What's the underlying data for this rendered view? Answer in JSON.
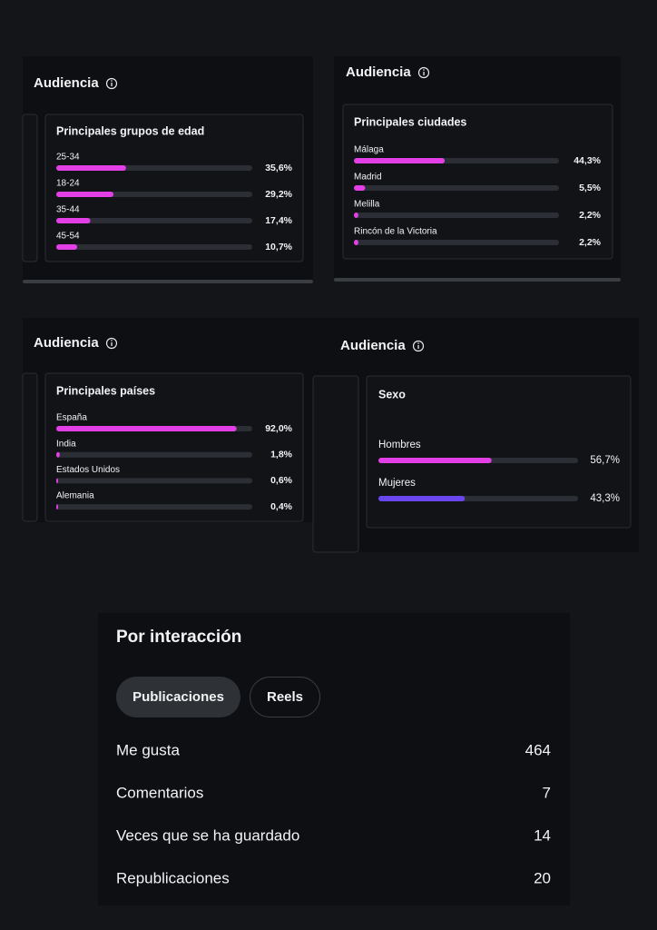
{
  "panels": [
    {
      "title": "Audiencia",
      "card_title": "Principales grupos de edad",
      "rows": [
        {
          "label": "25-34",
          "value": 35.6,
          "value_label": "35,6%",
          "color": "#e23fe6"
        },
        {
          "label": "18-24",
          "value": 29.2,
          "value_label": "29,2%",
          "color": "#e23fe6"
        },
        {
          "label": "35-44",
          "value": 17.4,
          "value_label": "17,4%",
          "color": "#e23fe6"
        },
        {
          "label": "45-54",
          "value": 10.7,
          "value_label": "10,7%",
          "color": "#e23fe6"
        }
      ]
    },
    {
      "title": "Audiencia",
      "card_title": "Principales ciudades",
      "rows": [
        {
          "label": "Málaga",
          "value": 44.3,
          "value_label": "44,3%",
          "color": "#e23fe6"
        },
        {
          "label": "Madrid",
          "value": 5.5,
          "value_label": "5,5%",
          "color": "#e23fe6"
        },
        {
          "label": "Melilla",
          "value": 2.2,
          "value_label": "2,2%",
          "color": "#e23fe6"
        },
        {
          "label": "Rincón de la Victoria",
          "value": 2.2,
          "value_label": "2,2%",
          "color": "#e23fe6"
        }
      ]
    },
    {
      "title": "Audiencia",
      "card_title": "Principales países",
      "rows": [
        {
          "label": "España",
          "value": 92.0,
          "value_label": "92,0%",
          "color": "#e23fe6"
        },
        {
          "label": "India",
          "value": 1.8,
          "value_label": "1,8%",
          "color": "#e23fe6"
        },
        {
          "label": "Estados Unidos",
          "value": 0.6,
          "value_label": "0,6%",
          "color": "#e23fe6"
        },
        {
          "label": "Alemania",
          "value": 0.4,
          "value_label": "0,4%",
          "color": "#e23fe6"
        }
      ]
    },
    {
      "title": "Audiencia",
      "card_title": "Sexo",
      "rows": [
        {
          "label": "Hombres",
          "value": 56.7,
          "value_label": "56,7%",
          "color": "#e23fe6"
        },
        {
          "label": "Mujeres",
          "value": 43.3,
          "value_label": "43,3%",
          "color": "#6a46ee"
        }
      ]
    }
  ],
  "interaction": {
    "title": "Por interacción",
    "tabs": [
      "Publicaciones",
      "Reels"
    ],
    "rows": [
      {
        "label": "Me gusta",
        "value": 464
      },
      {
        "label": "Comentarios",
        "value": 7
      },
      {
        "label": "Veces que se ha guardado",
        "value": 14
      },
      {
        "label": "Republicaciones",
        "value": 20
      }
    ]
  }
}
